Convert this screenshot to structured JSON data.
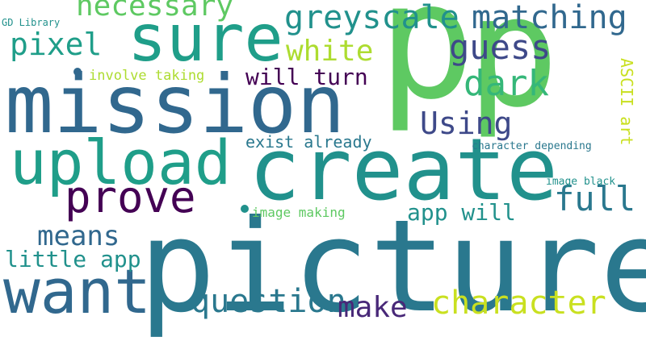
{
  "words": [
    {
      "text": "p"
    },
    {
      "text": "p"
    },
    {
      "text": "picture"
    },
    {
      "text": "mission"
    },
    {
      "text": "create"
    },
    {
      "text": "upload"
    },
    {
      "text": "sure"
    },
    {
      "text": "want"
    },
    {
      "text": "prove"
    },
    {
      "text": "greyscale"
    },
    {
      "text": "matching"
    },
    {
      "text": "necessary"
    },
    {
      "text": "character"
    },
    {
      "text": "question"
    },
    {
      "text": "full"
    },
    {
      "text": "make"
    },
    {
      "text": "pixel"
    },
    {
      "text": "white"
    },
    {
      "text": "guess"
    },
    {
      "text": "dark"
    },
    {
      "text": "Using"
    },
    {
      "text": "means"
    },
    {
      "text": "little app"
    },
    {
      "text": "app will"
    },
    {
      "text": "will turn"
    },
    {
      "text": "exist already"
    },
    {
      "text": "involve taking"
    },
    {
      "text": "image making"
    },
    {
      "text": "character depending"
    },
    {
      "text": "image black"
    },
    {
      "text": "GD Library"
    },
    {
      "text": "ASCII art"
    }
  ],
  "colors": {
    "background": "#ffffff",
    "palette": [
      "#5ec962",
      "#2a788e",
      "#31688e",
      "#21918c",
      "#1f9e89",
      "#440154",
      "#482878",
      "#3e4989",
      "#35b779",
      "#addc30",
      "#c9e020",
      "#443983"
    ]
  }
}
